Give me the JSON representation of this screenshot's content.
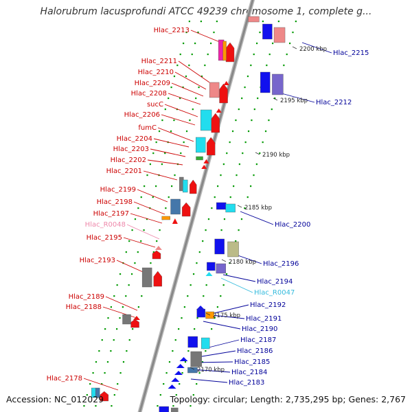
{
  "header": {
    "title": "Halorubrum lacusprofundi ATCC 49239 chromosome 1, complete g..."
  },
  "footer": {
    "accession": "Accession: NC_012029",
    "summary": "Topology: circular; Length: 2,735,295 bp; Genes: 2,767"
  },
  "colors": {
    "label_red": "#cc0000",
    "label_blue": "#000099",
    "label_pink": "#ee88aa",
    "label_cyan": "#33bbdd",
    "red": "#ee1111",
    "blue": "#1111ee",
    "cyan": "#22ddee",
    "pink": "#ee8888",
    "gray": "#777777",
    "steel": "#4477aa",
    "olive": "#bbbb88",
    "purple": "#7766cc",
    "orange": "#ff9900",
    "green": "#33aa33",
    "magenta": "#ee22aa",
    "backbone": "#888888",
    "tick": "#009900"
  },
  "scale_labels": [
    "2200 kbp",
    "2195 kbp",
    "2190 kbp",
    "2185 kbp",
    "2180 kbp",
    "2175 kbp",
    "2170 kbp"
  ],
  "left_labels": [
    {
      "text": "Hlac_2213",
      "color": "red"
    },
    {
      "text": "Hlac_2211",
      "color": "red"
    },
    {
      "text": "Hlac_2210",
      "color": "red"
    },
    {
      "text": "Hlac_2209",
      "color": "red"
    },
    {
      "text": "Hlac_2208",
      "color": "red"
    },
    {
      "text": "sucC",
      "color": "red"
    },
    {
      "text": "Hlac_2206",
      "color": "red"
    },
    {
      "text": "fumC",
      "color": "red"
    },
    {
      "text": "Hlac_2204",
      "color": "red"
    },
    {
      "text": "Hlac_2203",
      "color": "red"
    },
    {
      "text": "Hlac_2202",
      "color": "red"
    },
    {
      "text": "Hlac_2201",
      "color": "red"
    },
    {
      "text": "Hlac_2199",
      "color": "red"
    },
    {
      "text": "Hlac_2198",
      "color": "red"
    },
    {
      "text": "Hlac_2197",
      "color": "red"
    },
    {
      "text": "Hlac_R0048",
      "color": "pink"
    },
    {
      "text": "Hlac_2195",
      "color": "red"
    },
    {
      "text": "Hlac_2193",
      "color": "red"
    },
    {
      "text": "Hlac_2189",
      "color": "red"
    },
    {
      "text": "Hlac_2188",
      "color": "red"
    },
    {
      "text": "Hlac_2178",
      "color": "red"
    }
  ],
  "right_labels": [
    {
      "text": "Hlac_2215",
      "color": "blue"
    },
    {
      "text": "Hlac_2212",
      "color": "blue"
    },
    {
      "text": "Hlac_2200",
      "color": "blue"
    },
    {
      "text": "Hlac_2196",
      "color": "blue"
    },
    {
      "text": "Hlac_2194",
      "color": "blue"
    },
    {
      "text": "Hlac_R0047",
      "color": "cyan"
    },
    {
      "text": "Hlac_2192",
      "color": "blue"
    },
    {
      "text": "Hlac_2191",
      "color": "blue"
    },
    {
      "text": "Hlac_2190",
      "color": "blue"
    },
    {
      "text": "Hlac_2187",
      "color": "blue"
    },
    {
      "text": "Hlac_2186",
      "color": "blue"
    },
    {
      "text": "Hlac_2185",
      "color": "blue"
    },
    {
      "text": "Hlac_2184",
      "color": "blue"
    },
    {
      "text": "Hlac_2183",
      "color": "blue"
    }
  ]
}
